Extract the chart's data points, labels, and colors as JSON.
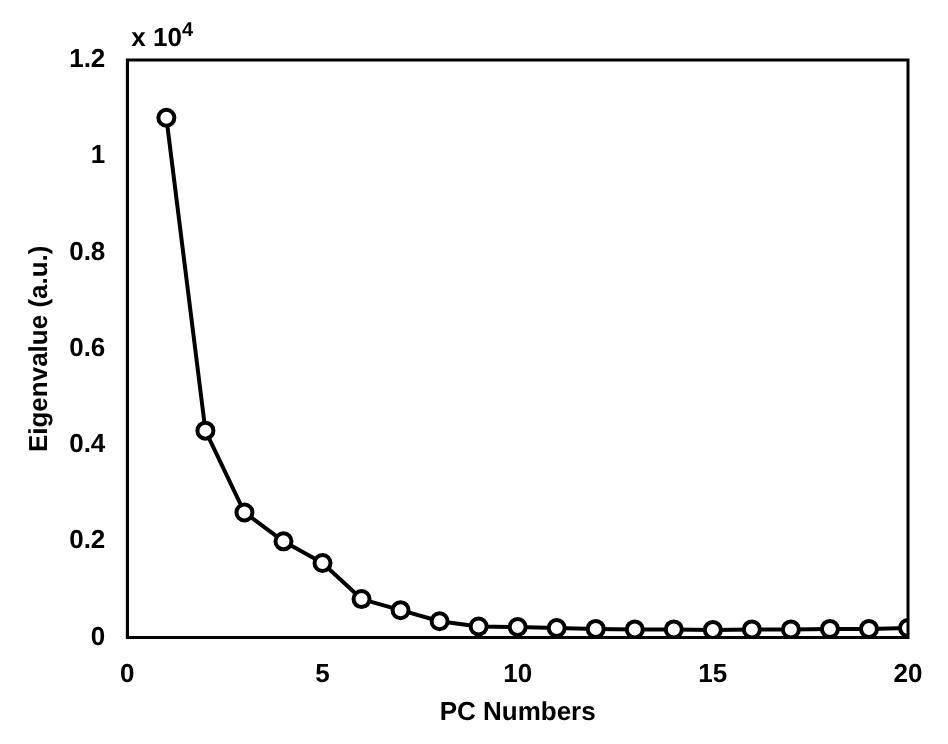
{
  "chart_data": {
    "type": "line",
    "xlabel": "PC Numbers",
    "ylabel": "Eigenvalue (a.u.)",
    "annotations": [
      "x 10$^{4}$"
    ],
    "x": [
      1,
      2,
      3,
      4,
      5,
      6,
      7,
      8,
      9,
      10,
      11,
      12,
      13,
      14,
      15,
      16,
      17,
      18,
      19,
      20
    ],
    "series": [
      {
        "color": "#000000",
        "values": [
          1.08,
          0.43,
          0.26,
          0.2,
          0.155,
          0.08,
          0.057,
          0.034,
          0.023,
          0.022,
          0.02,
          0.018,
          0.017,
          0.017,
          0.016,
          0.017,
          0.017,
          0.018,
          0.018,
          0.02
        ]
      }
    ],
    "xlim": [
      0,
      20
    ],
    "xticks": [
      0,
      5,
      10,
      15,
      20
    ],
    "ylim": [
      0,
      1.2
    ],
    "yticks": [
      0,
      0.2,
      0.4,
      0.6,
      0.8,
      1,
      1.2
    ],
    "grid": false,
    "legend": false,
    "marker": "circle",
    "line_style": "solid"
  }
}
